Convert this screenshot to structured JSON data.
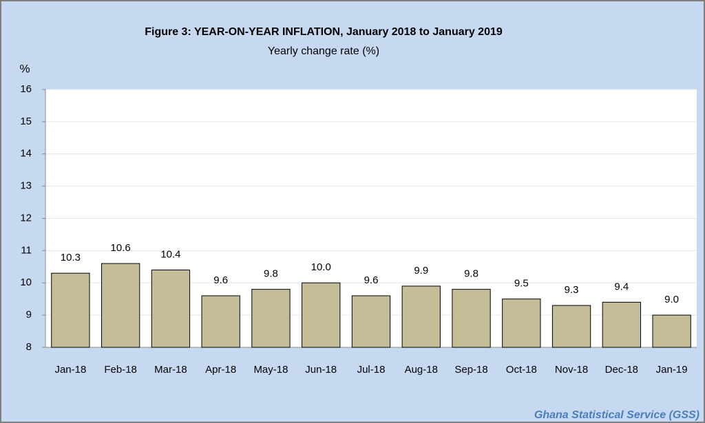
{
  "chart_data": {
    "type": "bar",
    "title": "Figure 3:  YEAR-ON-YEAR INFLATION, January 2018 to January  2019",
    "subtitle": "Yearly change rate (%)",
    "y_label": "%",
    "source": "Ghana Statistical Service (GSS)",
    "categories": [
      "Jan-18",
      "Feb-18",
      "Mar-18",
      "Apr-18",
      "May-18",
      "Jun-18",
      "Jul-18",
      "Aug-18",
      "Sep-18",
      "Oct-18",
      "Nov-18",
      "Dec-18",
      "Jan-19"
    ],
    "values": [
      10.3,
      10.6,
      10.4,
      9.6,
      9.8,
      10.0,
      9.6,
      9.9,
      9.8,
      9.5,
      9.3,
      9.4,
      9.0
    ],
    "value_labels": [
      "10.3",
      "10.6",
      "10.4",
      "9.6",
      "9.8",
      "10.0",
      "9.6",
      "9.9",
      "9.8",
      "9.5",
      "9.3",
      "9.4",
      "9.0"
    ],
    "color": "#c4bd97",
    "ylim": [
      8,
      16
    ],
    "yticks": [
      8,
      9,
      10,
      11,
      12,
      13,
      14,
      15,
      16
    ],
    "grid": true
  }
}
